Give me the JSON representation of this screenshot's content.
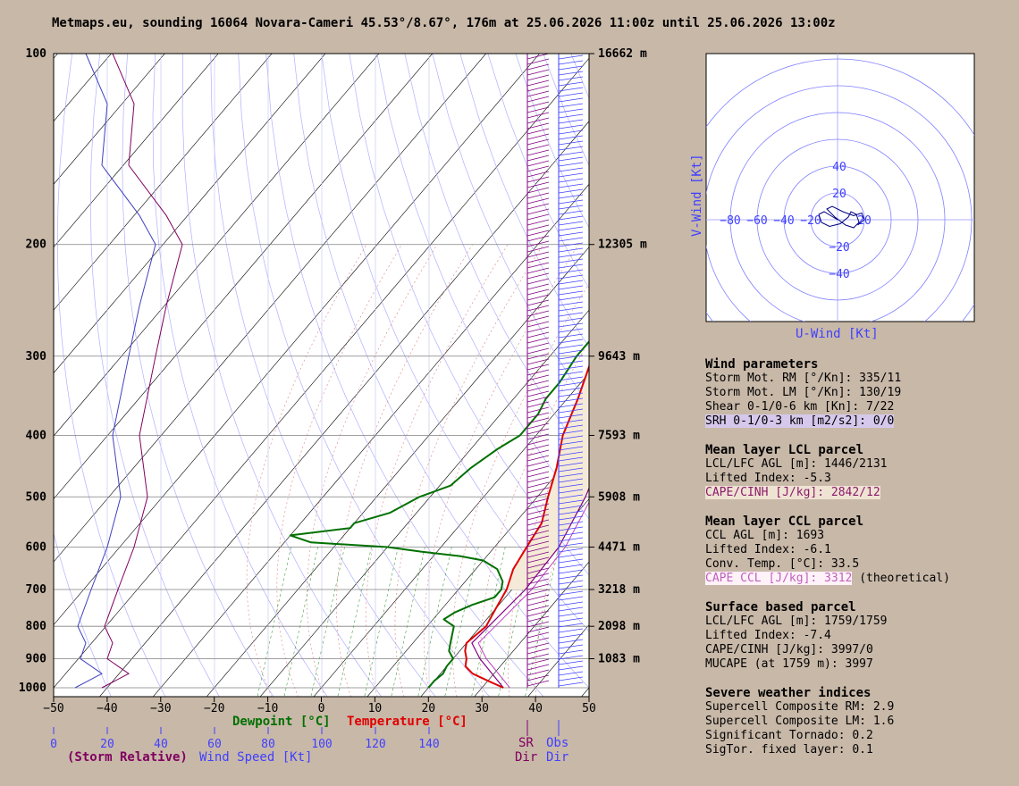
{
  "header": {
    "title": "Metmaps.eu, sounding 16064 Novara-Cameri 45.53°/8.67°, 176m at 25.06.2026 11:00z until 25.06.2026 13:00z"
  },
  "colors": {
    "background": "#c8b8a8",
    "temperature": "#e00000",
    "dewpoint": "#007000",
    "parcel": "#800080",
    "cape_fill": "#f5ead8",
    "wind_obs": "#4040ff",
    "wind_sr": "#800080",
    "speed_profile": "#4040c0",
    "sr_speed_profile": "#800060"
  },
  "chart_data": {
    "type": "skew-t",
    "pressure_axis_labels": [
      "100",
      "200",
      "300",
      "400",
      "500",
      "600",
      "700",
      "800",
      "900",
      "1000"
    ],
    "pressure_levels": [
      100,
      200,
      300,
      400,
      500,
      600,
      700,
      800,
      900,
      1000
    ],
    "height_labels": [
      {
        "p": 100,
        "label": "16662 m"
      },
      {
        "p": 200,
        "label": "12305 m"
      },
      {
        "p": 300,
        "label": "9643 m"
      },
      {
        "p": 400,
        "label": "7593 m"
      },
      {
        "p": 500,
        "label": "5908 m"
      },
      {
        "p": 600,
        "label": "4471 m"
      },
      {
        "p": 700,
        "label": "3218 m"
      },
      {
        "p": 800,
        "label": "2098 m"
      },
      {
        "p": 900,
        "label": "1083 m"
      }
    ],
    "temp_ticks": [
      "−50",
      "−40",
      "−30",
      "−20",
      "−10",
      "0",
      "10",
      "20",
      "30",
      "40",
      "50"
    ],
    "xlim": [
      -50,
      50
    ],
    "wind_speed_ticks": [
      "0",
      "20",
      "40",
      "60",
      "80",
      "100",
      "120",
      "140"
    ],
    "temperature_profile": [
      [
        1000,
        34
      ],
      [
        975,
        30
      ],
      [
        950,
        26
      ],
      [
        925,
        23.5
      ],
      [
        900,
        22.5
      ],
      [
        875,
        21
      ],
      [
        850,
        20
      ],
      [
        800,
        21
      ],
      [
        750,
        20
      ],
      [
        700,
        19
      ],
      [
        650,
        17
      ],
      [
        600,
        16
      ],
      [
        550,
        15
      ],
      [
        500,
        12
      ],
      [
        450,
        9
      ],
      [
        400,
        5
      ],
      [
        350,
        2
      ],
      [
        300,
        -2
      ],
      [
        250,
        -4
      ],
      [
        220,
        -4
      ],
      [
        200,
        -3
      ],
      [
        190,
        -1
      ],
      [
        180,
        3
      ],
      [
        170,
        8
      ],
      [
        160,
        12
      ],
      [
        150,
        16
      ],
      [
        140,
        20
      ],
      [
        130,
        24
      ],
      [
        120,
        29
      ],
      [
        110,
        35
      ],
      [
        100,
        39
      ]
    ],
    "dewpoint_profile": [
      [
        1000,
        20
      ],
      [
        975,
        20
      ],
      [
        950,
        20.5
      ],
      [
        925,
        20
      ],
      [
        900,
        20
      ],
      [
        875,
        18
      ],
      [
        850,
        17
      ],
      [
        800,
        15
      ],
      [
        780,
        12
      ],
      [
        760,
        13
      ],
      [
        740,
        15
      ],
      [
        720,
        18
      ],
      [
        700,
        18
      ],
      [
        680,
        17
      ],
      [
        650,
        14
      ],
      [
        630,
        10
      ],
      [
        620,
        5
      ],
      [
        610,
        -3
      ],
      [
        600,
        -10
      ],
      [
        590,
        -25
      ],
      [
        575,
        -30
      ],
      [
        560,
        -20
      ],
      [
        550,
        -20
      ],
      [
        530,
        -15
      ],
      [
        500,
        -12
      ],
      [
        480,
        -8
      ],
      [
        450,
        -7
      ],
      [
        420,
        -5
      ],
      [
        400,
        -3
      ],
      [
        370,
        -3
      ],
      [
        350,
        -4
      ],
      [
        330,
        -4
      ],
      [
        300,
        -5
      ],
      [
        280,
        -5
      ],
      [
        260,
        -8
      ],
      [
        250,
        -8
      ],
      [
        240,
        -8
      ],
      [
        230,
        -5
      ],
      [
        220,
        -5
      ],
      [
        210,
        -5
      ],
      [
        200,
        -7
      ],
      [
        190,
        -4
      ],
      [
        180,
        -5
      ],
      [
        170,
        -3
      ],
      [
        160,
        -2
      ],
      [
        150,
        -1
      ],
      [
        140,
        0
      ],
      [
        130,
        1
      ],
      [
        120,
        2
      ],
      [
        110,
        4
      ],
      [
        100,
        6
      ]
    ],
    "parcel_profile": [
      [
        1000,
        34
      ],
      [
        900,
        25
      ],
      [
        850,
        21
      ],
      [
        800,
        21.5
      ],
      [
        700,
        22.5
      ],
      [
        600,
        22
      ],
      [
        500,
        19
      ],
      [
        400,
        14
      ],
      [
        300,
        6
      ],
      [
        250,
        0
      ],
      [
        200,
        -8
      ],
      [
        150,
        -18
      ],
      [
        100,
        -30
      ]
    ],
    "temperature_label": "Temperature [°C]",
    "dewpoint_label": "Dewpoint [°C]",
    "wind_speed_label": "Wind Speed [Kt]",
    "storm_relative_label": "(Storm Relative)",
    "sr_dir_label": [
      "SR",
      "Dir"
    ],
    "obs_dir_label": [
      "Obs",
      "Dir"
    ]
  },
  "hodograph": {
    "x_label": "U-Wind [Kt]",
    "y_label": "V-Wind [Kt]",
    "x_ticks": [
      "−80",
      "−60",
      "−40",
      "−20",
      "20"
    ],
    "y_ticks": [
      "40",
      "20",
      "−20",
      "−40"
    ],
    "rings": [
      10,
      20,
      30,
      40,
      50,
      60
    ],
    "trace": [
      [
        0,
        0
      ],
      [
        -5,
        3
      ],
      [
        -10,
        6
      ],
      [
        -14,
        4
      ],
      [
        -12,
        -2
      ],
      [
        -6,
        -5
      ],
      [
        2,
        -3
      ],
      [
        8,
        2
      ],
      [
        10,
        6
      ],
      [
        14,
        4
      ],
      [
        16,
        -2
      ],
      [
        12,
        -6
      ],
      [
        6,
        -4
      ],
      [
        -2,
        2
      ],
      [
        -8,
        8
      ],
      [
        -4,
        10
      ],
      [
        4,
        6
      ],
      [
        12,
        3
      ],
      [
        18,
        5
      ],
      [
        20,
        0
      ],
      [
        15,
        -4
      ]
    ]
  },
  "params": {
    "wind": {
      "title": "Wind parameters",
      "lines": [
        "Storm Mot. RM [°/Kn]: 335/11",
        "Storm Mot. LM [°/Kn]: 130/19",
        "Shear 0-1/0-6 km [Kn]: 7/22"
      ],
      "srh": "SRH 0-1/0-3 km [m2/s2]: 0/0"
    },
    "lcl": {
      "title": "Mean layer LCL parcel",
      "lines": [
        "LCL/LFC AGL [m]: 1446/2131",
        "Lifted Index: -5.3"
      ],
      "cape": "CAPE/CINH [J/kg]: 2842/12"
    },
    "ccl": {
      "title": "Mean layer CCL parcel",
      "lines": [
        "CCL AGL [m]: 1693",
        "Lifted Index: -6.1",
        "Conv. Temp. [°C]: 33.5"
      ],
      "cape": "CAPE CCL [J/kg]: 3312",
      "cape_note": " (theoretical)"
    },
    "sb": {
      "title": "Surface based parcel",
      "lines": [
        "LCL/LFC AGL [m]: 1759/1759",
        "Lifted Index: -7.4",
        "CAPE/CINH [J/kg]: 3997/0",
        "MUCAPE (at 1759 m): 3997"
      ]
    },
    "severe": {
      "title": "Severe weather indices",
      "lines": [
        "Supercell Composite RM: 2.9",
        "Supercell Composite LM: 1.6",
        "Significant Tornado: 0.2",
        "SigTor. fixed layer: 0.1"
      ]
    }
  }
}
